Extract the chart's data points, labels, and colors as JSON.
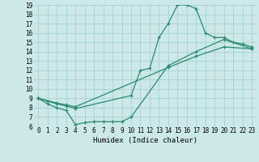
{
  "line1_x": [
    0,
    1,
    2,
    3,
    4,
    10,
    11,
    12,
    13,
    14,
    15,
    16,
    17,
    18,
    19,
    20,
    21,
    22,
    23
  ],
  "line1_y": [
    9.0,
    8.7,
    8.4,
    8.2,
    7.9,
    9.3,
    12.0,
    12.2,
    15.5,
    17.0,
    19.0,
    19.0,
    18.6,
    16.0,
    15.5,
    15.5,
    15.0,
    14.8,
    14.5
  ],
  "line2_x": [
    0,
    2,
    3,
    4,
    14,
    17,
    20,
    23
  ],
  "line2_y": [
    9.0,
    8.5,
    8.3,
    8.1,
    12.3,
    13.5,
    14.5,
    14.3
  ],
  "line3_x": [
    0,
    1,
    2,
    3,
    4,
    5,
    6,
    7,
    8,
    9,
    10,
    14,
    17,
    20,
    23
  ],
  "line3_y": [
    9.0,
    8.4,
    8.0,
    7.7,
    6.2,
    6.4,
    6.5,
    6.5,
    6.5,
    6.5,
    7.0,
    12.5,
    14.0,
    15.3,
    14.3
  ],
  "color": "#2a8a70",
  "bg_color": "#cce8e8",
  "grid_color": "#aad4d4",
  "xlabel": "Humidex (Indice chaleur)",
  "xlim": [
    -0.5,
    23.5
  ],
  "ylim": [
    6,
    19
  ],
  "xticks": [
    0,
    1,
    2,
    3,
    4,
    5,
    6,
    7,
    8,
    9,
    10,
    11,
    12,
    13,
    14,
    15,
    16,
    17,
    18,
    19,
    20,
    21,
    22,
    23
  ],
  "yticks": [
    6,
    7,
    8,
    9,
    10,
    11,
    12,
    13,
    14,
    15,
    16,
    17,
    18,
    19
  ]
}
